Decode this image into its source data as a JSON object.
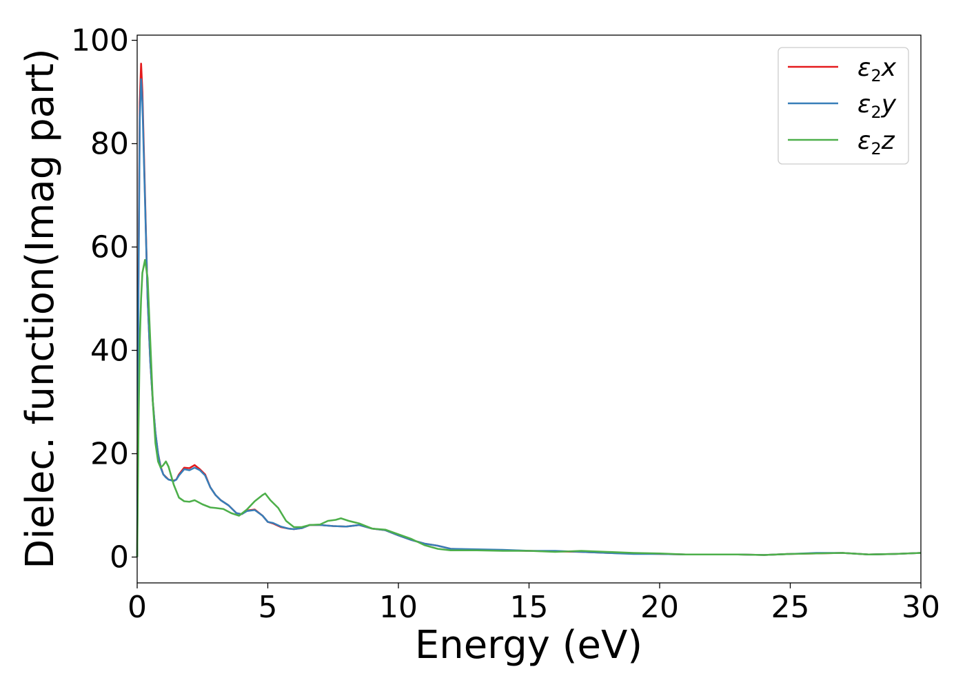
{
  "chart_data": {
    "type": "line",
    "title": "",
    "xlabel": "Energy (eV)",
    "ylabel": "Dielec. function(Imag part)",
    "xlim": [
      0,
      30
    ],
    "ylim": [
      -5,
      101
    ],
    "xticks": [
      0,
      5,
      10,
      15,
      20,
      25,
      30
    ],
    "yticks": [
      0,
      20,
      40,
      60,
      80,
      100
    ],
    "grid": false,
    "legend_position": "top-right",
    "series": [
      {
        "name": "ε2x",
        "legend_symbol": "ε",
        "legend_subscript": "2",
        "legend_suffix": "x",
        "color": "#e41a1c",
        "x": [
          0,
          0.05,
          0.1,
          0.15,
          0.2,
          0.3,
          0.4,
          0.5,
          0.6,
          0.7,
          0.8,
          0.9,
          1.0,
          1.1,
          1.2,
          1.4,
          1.5,
          1.6,
          1.8,
          2.0,
          2.2,
          2.4,
          2.6,
          2.8,
          3.0,
          3.2,
          3.5,
          3.8,
          4.0,
          4.2,
          4.5,
          4.8,
          5.0,
          5.2,
          5.5,
          5.8,
          6.0,
          6.3,
          6.6,
          7.0,
          7.5,
          8.0,
          8.5,
          9.0,
          9.5,
          10.0,
          10.5,
          11.0,
          11.5,
          12.0,
          13.0,
          14.0,
          15.0,
          16.0,
          17.0,
          18.0,
          19.0,
          20.0,
          21.0,
          22.0,
          23.0,
          24.0,
          25.0,
          26.0,
          27.0,
          28.0,
          29.0,
          30.0
        ],
        "y": [
          0,
          55,
          88,
          95.5,
          90,
          70,
          50,
          38,
          30,
          24,
          20,
          17.5,
          16,
          15.5,
          15,
          14.8,
          15,
          16,
          17.3,
          17.2,
          17.8,
          17,
          16,
          13.5,
          12,
          11,
          10,
          8.5,
          8.3,
          9,
          9.2,
          8,
          6.8,
          6.5,
          5.8,
          5.5,
          5.4,
          5.6,
          6.2,
          6.2,
          6.0,
          5.9,
          6.2,
          5.5,
          5.2,
          4.2,
          3.3,
          2.6,
          2.2,
          1.6,
          1.4,
          1.3,
          1.2,
          1.1,
          1.0,
          0.8,
          0.7,
          0.6,
          0.5,
          0.5,
          0.5,
          0.4,
          0.6,
          0.7,
          0.8,
          0.5,
          0.6,
          0.8
        ]
      },
      {
        "name": "ε2y",
        "legend_symbol": "ε",
        "legend_subscript": "2",
        "legend_suffix": "y",
        "color": "#377eb8",
        "x": [
          0,
          0.05,
          0.1,
          0.15,
          0.2,
          0.3,
          0.4,
          0.5,
          0.6,
          0.7,
          0.8,
          0.9,
          1.0,
          1.1,
          1.2,
          1.4,
          1.5,
          1.6,
          1.8,
          2.0,
          2.2,
          2.4,
          2.6,
          2.8,
          3.0,
          3.2,
          3.5,
          3.8,
          4.0,
          4.2,
          4.5,
          4.8,
          5.0,
          5.2,
          5.5,
          5.8,
          6.0,
          6.3,
          6.6,
          7.0,
          7.5,
          8.0,
          8.5,
          9.0,
          9.5,
          10.0,
          10.5,
          11.0,
          11.5,
          12.0,
          13.0,
          14.0,
          15.0,
          16.0,
          17.0,
          18.0,
          19.0,
          20.0,
          21.0,
          22.0,
          23.0,
          24.0,
          25.0,
          26.0,
          27.0,
          28.0,
          29.0,
          30.0
        ],
        "y": [
          0,
          52,
          85,
          92.5,
          88,
          69,
          50,
          38,
          30,
          24,
          20,
          17.3,
          16,
          15.4,
          15,
          14.7,
          15,
          15.8,
          17,
          16.8,
          17.3,
          16.8,
          15.8,
          13.5,
          12,
          11,
          10,
          8.5,
          8.3,
          8.9,
          9.1,
          8,
          6.8,
          6.6,
          5.9,
          5.5,
          5.4,
          5.6,
          6.2,
          6.2,
          6.0,
          5.9,
          6.2,
          5.5,
          5.2,
          4.2,
          3.3,
          2.6,
          2.2,
          1.6,
          1.5,
          1.4,
          1.2,
          1.2,
          1.0,
          0.8,
          0.6,
          0.6,
          0.5,
          0.5,
          0.5,
          0.4,
          0.6,
          0.8,
          0.8,
          0.5,
          0.6,
          0.8
        ]
      },
      {
        "name": "ε2z",
        "legend_symbol": "ε",
        "legend_subscript": "2",
        "legend_suffix": "z",
        "color": "#4daf4a",
        "x": [
          0,
          0.05,
          0.1,
          0.15,
          0.2,
          0.3,
          0.4,
          0.5,
          0.6,
          0.7,
          0.8,
          0.9,
          1.0,
          1.1,
          1.2,
          1.4,
          1.6,
          1.8,
          2.0,
          2.2,
          2.5,
          2.8,
          3.0,
          3.3,
          3.6,
          3.9,
          4.2,
          4.5,
          4.8,
          4.9,
          5.1,
          5.4,
          5.7,
          6.0,
          6.3,
          6.6,
          7.0,
          7.3,
          7.6,
          7.8,
          8.1,
          8.5,
          9.0,
          9.5,
          10.0,
          10.5,
          11.0,
          11.5,
          12.0,
          13.0,
          14.0,
          15.0,
          16.0,
          17.0,
          18.0,
          19.0,
          20.0,
          21.0,
          22.0,
          23.0,
          24.0,
          25.0,
          26.0,
          27.0,
          28.0,
          29.0,
          30.0
        ],
        "y": [
          0,
          25,
          42,
          50,
          55,
          57.5,
          54,
          42,
          30,
          22,
          18.5,
          17.3,
          17.8,
          18.5,
          17.5,
          14,
          11.5,
          10.8,
          10.7,
          11,
          10.2,
          9.6,
          9.5,
          9.3,
          8.5,
          8.0,
          9.2,
          10.8,
          12,
          12.3,
          11,
          9.5,
          7,
          5.8,
          5.8,
          6.2,
          6.3,
          7.0,
          7.2,
          7.5,
          7.0,
          6.5,
          5.5,
          5.3,
          4.4,
          3.5,
          2.3,
          1.6,
          1.3,
          1.3,
          1.2,
          1.2,
          1.0,
          1.2,
          1.0,
          0.8,
          0.7,
          0.5,
          0.5,
          0.5,
          0.4,
          0.6,
          0.7,
          0.8,
          0.5,
          0.6,
          0.8
        ]
      }
    ]
  }
}
